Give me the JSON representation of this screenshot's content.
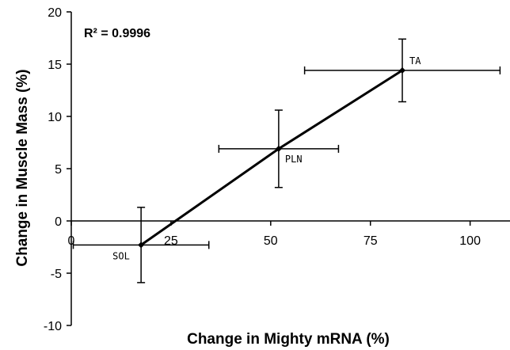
{
  "chart_data": {
    "type": "scatter",
    "title": "",
    "xlabel": "Change in Mighty mRNA (%)",
    "ylabel": "Change in Muscle Mass (%)",
    "xlim": [
      0,
      110
    ],
    "ylim": [
      -10,
      20
    ],
    "x_ticks": [
      "0",
      "25",
      "50",
      "75",
      "100"
    ],
    "y_ticks": [
      "20",
      "15",
      "10",
      "5",
      "0",
      "-5",
      "-10"
    ],
    "annotation": "R² = 0.9996",
    "trendline": true,
    "points": [
      {
        "label": "SOL",
        "x": 17.5,
        "y": -2.3,
        "x_err": 17,
        "y_err": 3.6
      },
      {
        "label": "PLN",
        "x": 52,
        "y": 6.9,
        "x_err": 15,
        "y_err": 3.7
      },
      {
        "label": "TA",
        "x": 83,
        "y": 14.4,
        "x_err": 24.5,
        "y_err": 3.0
      }
    ]
  }
}
